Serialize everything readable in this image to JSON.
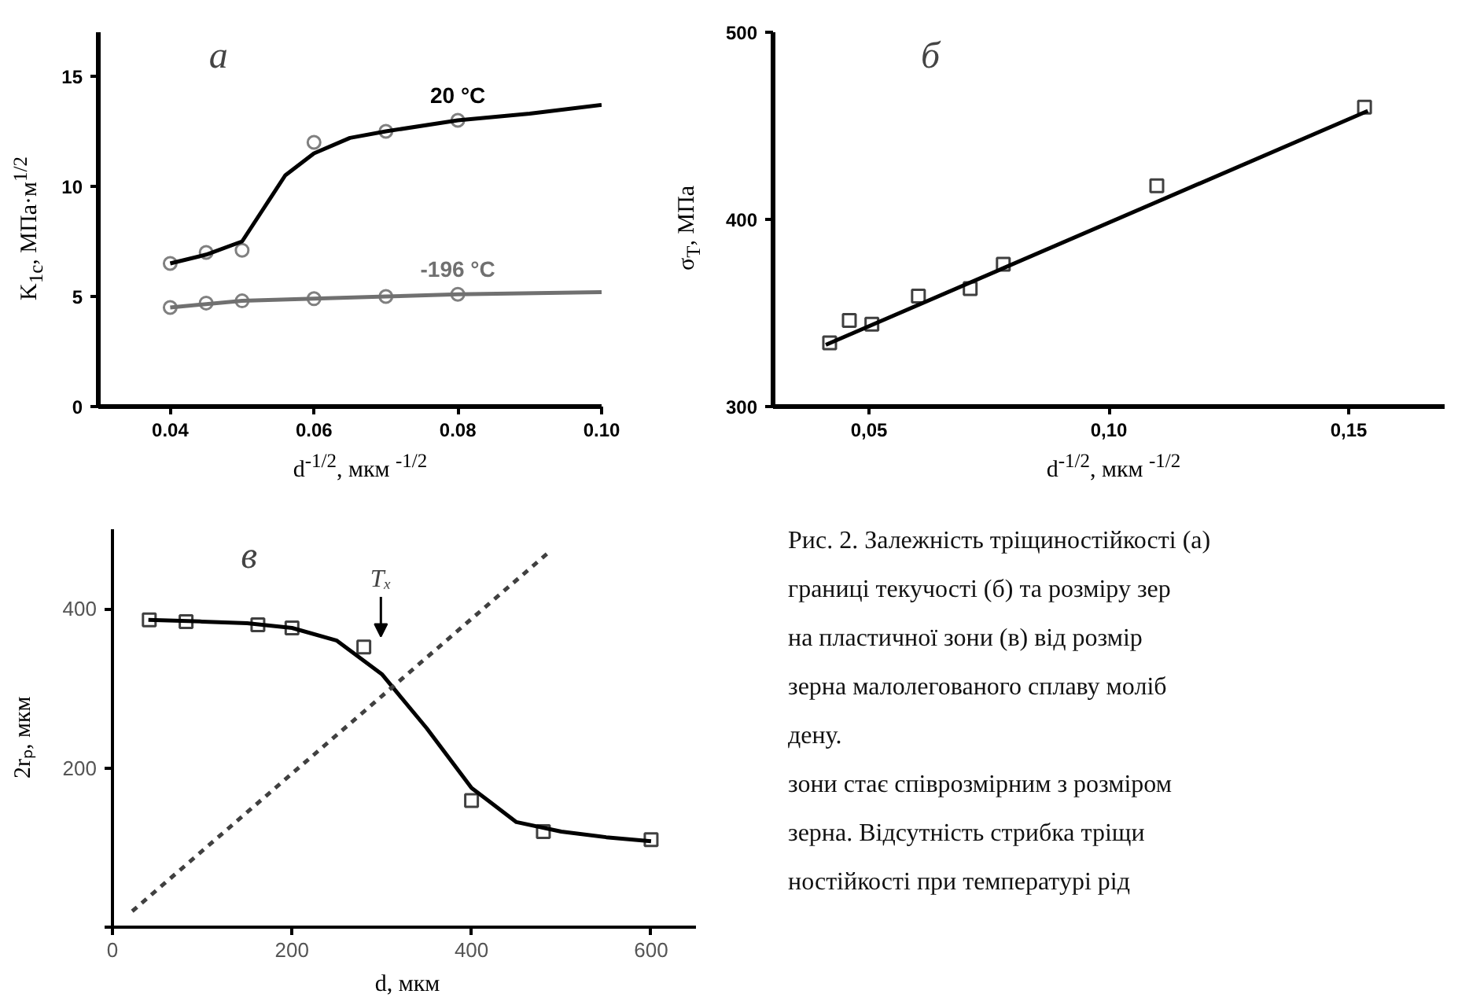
{
  "chart_data": [
    {
      "type": "line",
      "xlabel": "d$^{-1/2}$, мкм $^{-1/2}$",
      "ylabel": "K$_{1c}$, МПа·м$^{1/2}$",
      "xlim": [
        0.03,
        0.1
      ],
      "ylim": [
        0,
        17
      ],
      "xticks": [
        {
          "value": 0.04,
          "label": "0.04"
        },
        {
          "value": 0.06,
          "label": "0.06"
        },
        {
          "value": 0.08,
          "label": "0.08"
        },
        {
          "value": 0.1,
          "label": "0.10"
        }
      ],
      "yticks": [
        0,
        5,
        10,
        15
      ],
      "annotations": [
        "а"
      ],
      "series": [
        {
          "type": "scatter",
          "marker": "circle",
          "color": "#808080",
          "x": [
            0.04,
            0.045,
            0.05,
            0.06,
            0.07,
            0.08
          ],
          "values": [
            6.5,
            7.0,
            7.1,
            12.0,
            12.5,
            13.0
          ]
        },
        {
          "type": "line",
          "name": "20 °C",
          "color": "#000000",
          "x": [
            0.04,
            0.045,
            0.05,
            0.053,
            0.056,
            0.06,
            0.065,
            0.07,
            0.08,
            0.09,
            0.1
          ],
          "values": [
            6.5,
            6.9,
            7.5,
            9.0,
            10.5,
            11.5,
            12.2,
            12.5,
            13.0,
            13.3,
            13.7
          ]
        },
        {
          "type": "scatter",
          "marker": "circle",
          "color": "#808080",
          "x": [
            0.04,
            0.045,
            0.05,
            0.06,
            0.07,
            0.08
          ],
          "values": [
            4.5,
            4.7,
            4.8,
            4.9,
            5.0,
            5.1
          ]
        },
        {
          "type": "line",
          "name": "-196 °C",
          "color": "#707070",
          "x": [
            0.04,
            0.05,
            0.06,
            0.07,
            0.08,
            0.1
          ],
          "values": [
            4.5,
            4.8,
            4.9,
            5.0,
            5.1,
            5.2
          ]
        }
      ]
    },
    {
      "type": "line",
      "xlabel": "d$^{-1/2}$, мкм $^{-1/2}$",
      "ylabel": "σ$_{T}$, МПа",
      "xlim": [
        0.03,
        0.17
      ],
      "ylim": [
        300,
        500
      ],
      "xticks": [
        {
          "value": 0.05,
          "label": "0,05"
        },
        {
          "value": 0.1,
          "label": "0,10"
        },
        {
          "value": 0.15,
          "label": "0,15"
        }
      ],
      "yticks": [
        300,
        400,
        500
      ],
      "annotations": [
        "б"
      ],
      "series": [
        {
          "type": "scatter",
          "marker": "square",
          "color": "#404040",
          "x": [
            0.0418,
            0.0459,
            0.0506,
            0.0603,
            0.0711,
            0.078,
            0.11,
            0.1533
          ],
          "values": [
            334,
            346,
            344,
            359,
            363,
            376,
            418,
            460
          ]
        },
        {
          "type": "line",
          "color": "#000000",
          "x": [
            0.041,
            0.154
          ],
          "values": [
            333,
            458
          ]
        }
      ]
    },
    {
      "type": "line",
      "xlabel": "d, мкм",
      "ylabel": "2rₚ, мкм",
      "xlim": [
        0,
        650
      ],
      "ylim": [
        0,
        500
      ],
      "xticks": [
        0,
        200,
        400,
        600
      ],
      "yticks": [
        {
          "value": 0,
          "label": null
        },
        200,
        400
      ],
      "annotations": [
        "в",
        "Tₓ"
      ],
      "series": [
        {
          "type": "scatter",
          "marker": "square",
          "color": "#404040",
          "x": [
            41,
            82,
            162,
            200,
            280,
            400,
            480,
            600
          ],
          "values": [
            386,
            384,
            380,
            376,
            352,
            159,
            120,
            110
          ]
        },
        {
          "type": "line",
          "color": "#000000",
          "x": [
            40,
            100,
            150,
            200,
            250,
            300,
            350,
            400,
            450,
            500,
            550,
            600
          ],
          "values": [
            386,
            384,
            382,
            376,
            360,
            318,
            250,
            175,
            132,
            120,
            113,
            108
          ]
        },
        {
          "type": "line",
          "line_style": "dashed",
          "color": "#404040",
          "x": [
            22,
            486
          ],
          "values": [
            20,
            471
          ]
        }
      ]
    },
    {
      "type": "other",
      "annotations": [
        "Рис. 2. Залежність тріщиностійкості (а)",
        "границі текучості (б) та розміру зер",
        "на пластичної зони (в) від розмір",
        "зерна малолегованого сплаву моліб",
        "дену.",
        "зони стає співрозмірним з розміром",
        "зерна. Відсутність стрибка тріщи",
        "ностійкості при температурі рід"
      ]
    }
  ]
}
